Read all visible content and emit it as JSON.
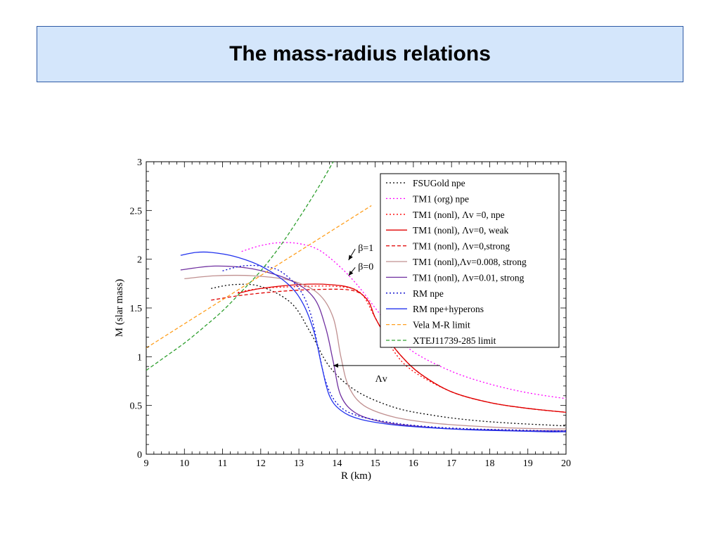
{
  "slide": {
    "title": "The mass-radius relations"
  },
  "chart_data": {
    "type": "line",
    "xlabel": "R (km)",
    "ylabel": "M (slar mass)",
    "xlim": [
      9,
      20
    ],
    "ylim": [
      0,
      3
    ],
    "xticks": [
      9,
      10,
      11,
      12,
      13,
      14,
      15,
      16,
      17,
      18,
      19,
      20
    ],
    "yticks": [
      0,
      0.5,
      1,
      1.5,
      2,
      2.5,
      3
    ],
    "ytick_labels": [
      "0",
      "0.5",
      "1",
      "1.5",
      "2",
      "2.5",
      "3"
    ],
    "grid": false,
    "legend_position": "top-right",
    "series": [
      {
        "name": "FSUGold npe",
        "color": "#000000",
        "dash": "dotted",
        "x": [
          10.7,
          11.3,
          12.0,
          12.8,
          13.3,
          13.8,
          14.5,
          15.5,
          16.5,
          17.5,
          18.5,
          19.5,
          20
        ],
        "y": [
          1.7,
          1.74,
          1.72,
          1.55,
          1.25,
          0.9,
          0.65,
          0.48,
          0.4,
          0.35,
          0.32,
          0.3,
          0.29
        ]
      },
      {
        "name": "TM1 (org) npe",
        "color": "#ff00ff",
        "dash": "dotted",
        "x": [
          11.5,
          12.0,
          12.5,
          13.0,
          13.5,
          14.0,
          14.5,
          15.0,
          15.5,
          16.0,
          17.0,
          18.0,
          19.0,
          20
        ],
        "y": [
          2.08,
          2.14,
          2.17,
          2.16,
          2.1,
          1.95,
          1.75,
          1.5,
          1.25,
          1.05,
          0.85,
          0.72,
          0.63,
          0.57
        ]
      },
      {
        "name": "TM1 (nonl), Λv =0, npe",
        "color": "#ff0000",
        "dash": "dotted",
        "x": [
          11.4,
          12.0,
          13.0,
          14.0,
          14.6,
          15.0,
          15.5,
          16.0,
          17.0,
          18.0,
          19.0,
          20
        ],
        "y": [
          1.66,
          1.7,
          1.72,
          1.72,
          1.66,
          1.4,
          1.05,
          0.85,
          0.64,
          0.53,
          0.47,
          0.43
        ]
      },
      {
        "name": "TM1 (nonl), Λv=0, weak",
        "color": "#e00000",
        "dash": "solid",
        "x": [
          11.4,
          12.0,
          13.0,
          13.8,
          14.4,
          14.8,
          15.0,
          15.3,
          15.7,
          16.2,
          17.0,
          18.0,
          19.0,
          20
        ],
        "y": [
          1.65,
          1.7,
          1.74,
          1.74,
          1.7,
          1.58,
          1.4,
          1.2,
          1.0,
          0.82,
          0.64,
          0.53,
          0.47,
          0.43
        ]
      },
      {
        "name": "TM1 (nonl), Λv=0,strong",
        "color": "#e00000",
        "dash": "dashed",
        "x": [
          10.7,
          11.5,
          12.5,
          13.5,
          14.4,
          14.8,
          15.0,
          15.3,
          15.7,
          16.2,
          17.0,
          18.0,
          19.0,
          20
        ],
        "y": [
          1.58,
          1.63,
          1.67,
          1.69,
          1.68,
          1.58,
          1.4,
          1.2,
          1.0,
          0.82,
          0.64,
          0.53,
          0.47,
          0.43
        ]
      },
      {
        "name": "TM1 (nonl),Λv=0.008, strong",
        "color": "#c09090",
        "dash": "solid",
        "x": [
          10.0,
          10.8,
          11.8,
          12.8,
          13.5,
          13.9,
          14.1,
          14.3,
          14.7,
          15.5,
          16.5,
          17.5,
          18.5,
          19.5,
          20
        ],
        "y": [
          1.8,
          1.83,
          1.83,
          1.78,
          1.65,
          1.4,
          1.0,
          0.7,
          0.5,
          0.38,
          0.32,
          0.29,
          0.27,
          0.26,
          0.26
        ]
      },
      {
        "name": "TM1 (nonl), Λv=0.01, strong",
        "color": "#7030a0",
        "dash": "solid",
        "x": [
          9.9,
          10.8,
          11.8,
          12.8,
          13.4,
          13.7,
          13.9,
          14.1,
          14.5,
          15.2,
          16.0,
          17.0,
          18.0,
          19.0,
          20
        ],
        "y": [
          1.89,
          1.93,
          1.9,
          1.78,
          1.6,
          1.3,
          0.95,
          0.6,
          0.42,
          0.33,
          0.29,
          0.26,
          0.25,
          0.24,
          0.24
        ]
      },
      {
        "name": "RM npe",
        "color": "#0000cc",
        "dash": "dotted",
        "x": [
          11.0,
          11.5,
          12.0,
          12.5,
          13.0,
          13.3,
          13.5,
          13.7,
          14.0,
          14.5,
          15.5,
          16.5,
          17.5,
          18.5,
          19.5,
          20
        ],
        "y": [
          1.88,
          1.93,
          1.93,
          1.88,
          1.7,
          1.45,
          1.1,
          0.75,
          0.52,
          0.4,
          0.32,
          0.28,
          0.26,
          0.25,
          0.24,
          0.24
        ]
      },
      {
        "name": "RM npe+hyperons",
        "color": "#2233ee",
        "dash": "solid",
        "x": [
          9.9,
          10.3,
          10.7,
          11.3,
          12.0,
          12.7,
          13.1,
          13.4,
          13.6,
          13.8,
          14.1,
          14.6,
          15.5,
          16.5,
          17.5,
          18.5,
          19.5,
          20
        ],
        "y": [
          2.04,
          2.07,
          2.07,
          2.03,
          1.93,
          1.75,
          1.55,
          1.25,
          0.9,
          0.6,
          0.45,
          0.36,
          0.3,
          0.27,
          0.25,
          0.24,
          0.23,
          0.23
        ]
      },
      {
        "name": "Vela M-R limit",
        "color": "#ffa020",
        "dash": "dashed",
        "x": [
          9.0,
          14.9
        ],
        "y": [
          1.09,
          2.55
        ]
      },
      {
        "name": "XTEJ11739-285 limit",
        "color": "#30a030",
        "dash": "dashed",
        "x": [
          9.0,
          9.5,
          10.0,
          10.5,
          11.0,
          11.5,
          12.0,
          12.5,
          13.0,
          13.5,
          13.9
        ],
        "y": [
          0.86,
          1.0,
          1.14,
          1.3,
          1.47,
          1.67,
          1.88,
          2.13,
          2.42,
          2.73,
          3.0
        ]
      }
    ],
    "annotations": [
      {
        "text": "β=1",
        "label_x": 14.55,
        "label_y": 2.12,
        "arrow_to_x": 14.3,
        "arrow_to_y": 1.99
      },
      {
        "text": "β=0",
        "label_x": 14.55,
        "label_y": 1.93,
        "arrow_to_x": 14.3,
        "arrow_to_y": 1.83
      },
      {
        "text": "Λv",
        "label_x": 15.0,
        "label_y": 0.78,
        "arrow_from_x": 16.7,
        "arrow_from_y": 0.91,
        "arrow_to_x": 13.9,
        "arrow_to_y": 0.91
      }
    ]
  }
}
